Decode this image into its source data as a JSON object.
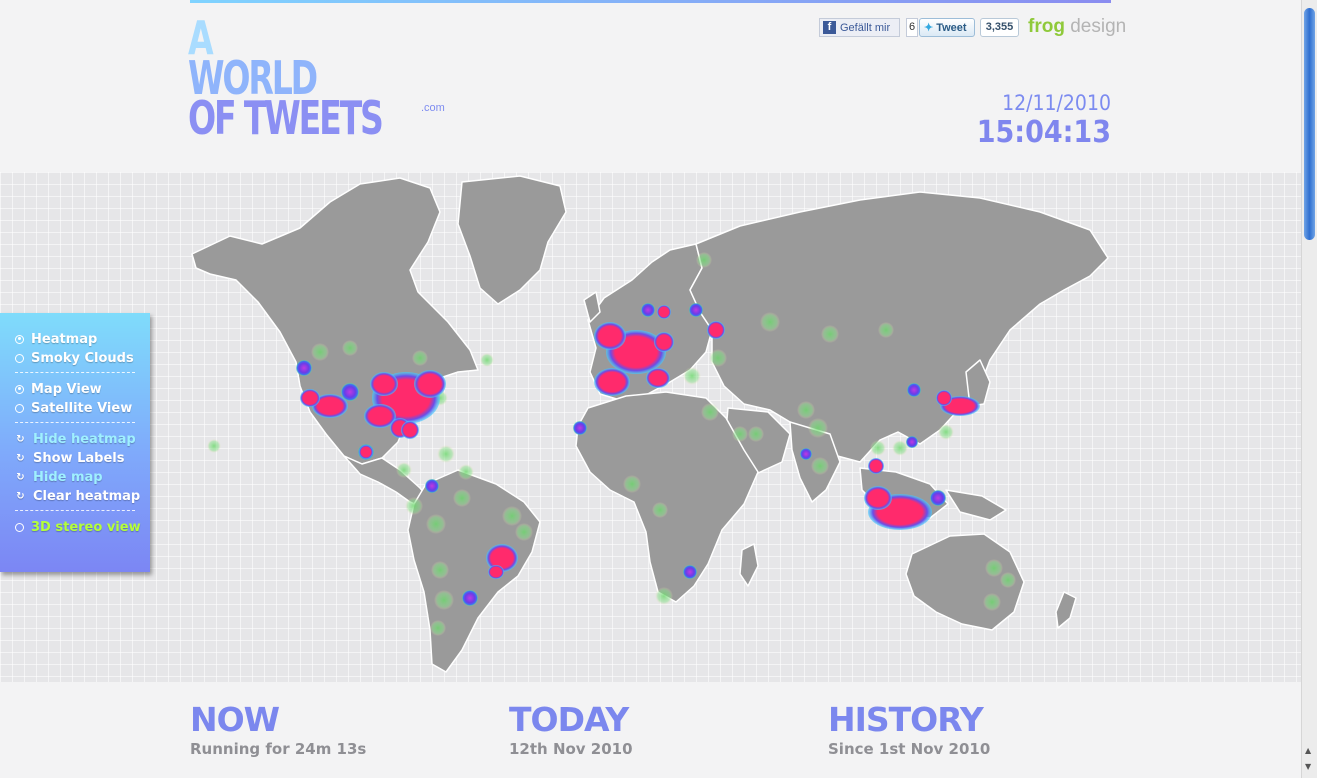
{
  "header": {
    "logo": {
      "line1": "A",
      "line2": "WORLD",
      "line3": "OF TWEETS",
      "suffix": ".com"
    },
    "social": {
      "facebook_label": "Gefällt mir",
      "facebook_count": "6",
      "tweet_label": "Tweet",
      "tweet_count": "3,355"
    },
    "brand": {
      "part1": "frog",
      "part2": "design"
    },
    "date": "12/11/2010",
    "time": "15:04:13"
  },
  "controls": {
    "display_modes": [
      {
        "label": "Heatmap",
        "selected": true
      },
      {
        "label": "Smoky Clouds",
        "selected": false
      }
    ],
    "view_modes": [
      {
        "label": "Map View",
        "selected": true
      },
      {
        "label": "Satellite View",
        "selected": false
      }
    ],
    "actions": [
      {
        "label": "Hide heatmap",
        "active": false
      },
      {
        "label": "Show Labels",
        "active": true
      },
      {
        "label": "Hide map",
        "active": false
      },
      {
        "label": "Clear heatmap",
        "active": true
      }
    ],
    "stereo": {
      "label": "3D stereo view",
      "selected": false
    }
  },
  "stats": {
    "now": {
      "title": "NOW",
      "subtitle": "Running for 24m 13s"
    },
    "today": {
      "title": "TODAY",
      "subtitle": "12th Nov 2010"
    },
    "history": {
      "title": "HISTORY",
      "subtitle": "Since 1st Nov 2010"
    }
  },
  "colors": {
    "accent": "#7b87ee",
    "heat_high": "#ff2d6f",
    "heat_mid": "#6a4de8",
    "heat_low": "#63d96b",
    "land": "#9a9a9a",
    "inactive_action": "#9ff0ff",
    "stereo": "#b4ff3a"
  }
}
